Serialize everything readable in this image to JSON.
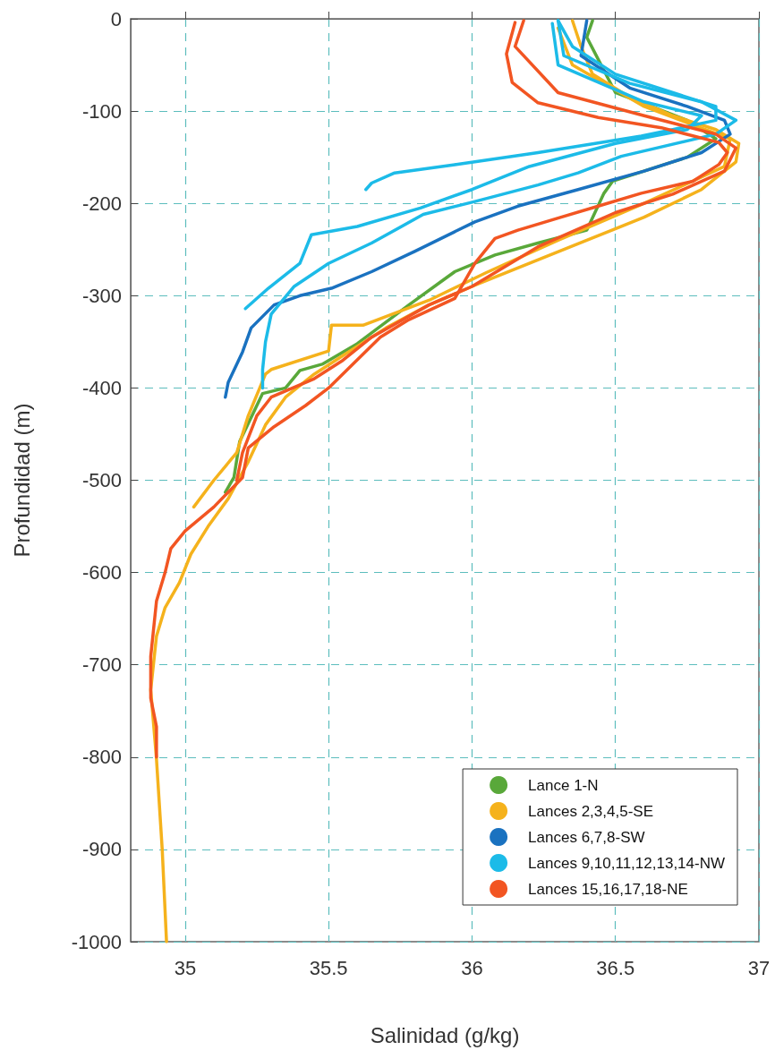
{
  "chart_data": {
    "type": "line",
    "xlabel": "Salinidad (g/kg)",
    "ylabel": "Profundidad (m)",
    "xlim": [
      34.81,
      37
    ],
    "xticks": [
      35,
      35.5,
      36,
      36.5,
      37
    ],
    "ylim": [
      -1000,
      0
    ],
    "yticks": [
      -1000,
      -900,
      -800,
      -700,
      -600,
      -500,
      -400,
      -300,
      -200,
      -100,
      0
    ],
    "grid": true,
    "legend": "bottom right",
    "line_style": "solid",
    "series": [
      {
        "name": "Lance 1-N",
        "color": "#59a83a",
        "x": [
          36.42,
          36.4,
          36.5,
          36.75,
          36.85,
          36.75,
          36.49,
          36.46,
          36.4,
          36.23,
          36.08,
          35.94,
          35.9,
          35.78,
          35.6,
          35.48,
          35.4,
          35.35,
          35.27,
          35.19,
          35.17,
          35.14
        ],
        "values": [
          -2,
          -20,
          -80,
          -110,
          -130,
          -150,
          -176,
          -189,
          -229,
          -243,
          -256,
          -274,
          -283,
          -310,
          -352,
          -374,
          -381,
          -400,
          -406,
          -458,
          -497,
          -513
        ]
      },
      {
        "name": "Lances 2,3,4,5-SE",
        "color": "#f5b21c",
        "x": [
          36.35,
          36.38,
          36.42,
          36.55,
          36.7,
          36.85,
          36.93,
          36.92,
          36.8,
          36.6,
          36.4,
          36.2,
          36.0,
          35.85,
          35.7,
          35.55,
          35.45,
          35.35,
          35.28,
          35.22,
          35.15,
          35.08,
          35.02,
          34.98,
          34.93,
          34.9,
          34.88,
          34.9,
          34.92,
          34.935
        ],
        "values": [
          -2,
          -30,
          -60,
          -85,
          -105,
          -120,
          -135,
          -155,
          -185,
          -215,
          -240,
          -265,
          -290,
          -310,
          -335,
          -365,
          -385,
          -410,
          -440,
          -480,
          -520,
          -550,
          -580,
          -611,
          -638,
          -669,
          -727,
          -802,
          -900,
          -1000
        ]
      },
      {
        "color": "#f5b21c",
        "x": [
          36.3,
          36.35,
          36.6,
          36.9,
          36.88,
          36.6,
          36.3,
          36.05,
          35.85,
          35.62,
          35.51,
          35.5,
          35.3,
          35.28,
          35.22,
          35.18,
          35.1,
          35.03
        ],
        "values": [
          -10,
          -50,
          -95,
          -130,
          -160,
          -200,
          -240,
          -275,
          -305,
          -332,
          -332,
          -360,
          -380,
          -385,
          -430,
          -470,
          -500,
          -529
        ]
      },
      {
        "name": "Lances 6,7,8-SW",
        "color": "#1a72c0",
        "x": [
          36.4,
          36.38,
          36.55,
          36.75,
          36.88,
          36.9,
          36.8,
          36.6,
          36.37,
          36.16,
          36.01,
          35.8,
          35.65,
          35.51,
          35.4,
          35.31,
          35.23,
          35.2,
          35.15,
          35.14
        ],
        "values": [
          -2,
          -40,
          -75,
          -95,
          -110,
          -125,
          -145,
          -165,
          -185,
          -203,
          -220,
          -252,
          -274,
          -292,
          -300,
          -310,
          -335,
          -361,
          -394,
          -410
        ]
      },
      {
        "name": "Lances 9,10,11,12,13,14-NW",
        "color": "#1cbbe8",
        "x": [
          36.3,
          36.35,
          36.5,
          36.7,
          36.85,
          36.85,
          36.7,
          36.59,
          36.23,
          35.94,
          35.73,
          35.65,
          35.63
        ],
        "values": [
          -2,
          -30,
          -60,
          -80,
          -95,
          -110,
          -120,
          -127,
          -145,
          -158,
          -167,
          -178,
          -185
        ]
      },
      {
        "color": "#1cbbe8",
        "x": [
          36.3,
          36.32,
          36.55,
          36.8,
          36.92,
          36.85,
          36.52,
          36.37,
          36.23,
          36.01,
          35.83,
          35.65,
          35.5,
          35.38,
          35.3,
          35.28,
          35.27,
          35.27
        ],
        "values": [
          -2,
          -40,
          -70,
          -90,
          -110,
          -125,
          -149,
          -167,
          -180,
          -198,
          -212,
          -243,
          -265,
          -290,
          -320,
          -350,
          -380,
          -400
        ]
      },
      {
        "color": "#1cbbe8",
        "x": [
          36.28,
          36.3,
          36.6,
          36.8,
          36.75,
          36.5,
          36.2,
          36.0,
          35.82,
          35.6,
          35.44,
          35.4,
          35.29,
          35.21
        ],
        "values": [
          -5,
          -50,
          -90,
          -105,
          -120,
          -135,
          -160,
          -185,
          -205,
          -225,
          -234,
          -265,
          -292,
          -314
        ]
      },
      {
        "name": "Lances 15,16,17,18-NE",
        "color": "#f25522",
        "x": [
          36.15,
          36.12,
          36.14,
          36.23,
          36.44,
          36.66,
          36.86,
          36.89,
          36.86,
          36.77,
          36.59,
          36.44,
          36.3,
          36.16,
          36.08,
          36.01,
          35.94,
          35.78,
          35.68,
          35.5,
          35.42,
          35.31,
          35.22,
          35.2,
          35.1,
          35.0,
          34.95,
          34.93,
          34.9,
          34.88,
          34.88,
          34.9,
          34.9
        ],
        "values": [
          -4,
          -38,
          -69,
          -91,
          -107,
          -118,
          -134,
          -145,
          -158,
          -176,
          -189,
          -203,
          -216,
          -229,
          -238,
          -265,
          -303,
          -326,
          -345,
          -400,
          -419,
          -442,
          -465,
          -497,
          -529,
          -555,
          -574,
          -600,
          -631,
          -691,
          -736,
          -767,
          -800
        ]
      },
      {
        "color": "#f25522",
        "x": [
          36.18,
          36.15,
          36.3,
          36.6,
          36.85,
          36.92,
          36.88,
          36.7,
          36.5,
          36.23,
          36.0,
          35.85,
          35.65,
          35.55,
          35.45,
          35.3,
          35.25,
          35.2,
          35.18
        ],
        "values": [
          -2,
          -30,
          -80,
          -105,
          -125,
          -140,
          -165,
          -190,
          -210,
          -247,
          -290,
          -310,
          -345,
          -370,
          -390,
          -410,
          -430,
          -470,
          -500
        ]
      }
    ]
  }
}
